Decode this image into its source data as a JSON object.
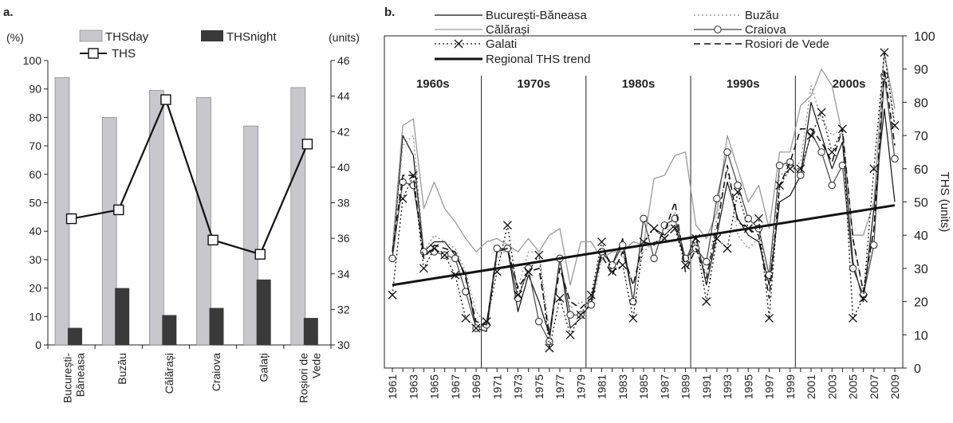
{
  "chart_data": [
    {
      "panel_label": "a.",
      "type": "bar",
      "left_axis_label": "(%)",
      "right_axis_label": "(units)",
      "categories": [
        [
          "București-",
          "Băneasa"
        ],
        [
          "Buzău"
        ],
        [
          "Călărași"
        ],
        [
          "Craiova"
        ],
        [
          "Galați"
        ],
        [
          "Roșiori de",
          "Vede"
        ]
      ],
      "ylim": [
        0,
        100
      ],
      "yticks": [
        0,
        10,
        20,
        30,
        40,
        50,
        60,
        70,
        80,
        90,
        100
      ],
      "y2lim": [
        30,
        46
      ],
      "y2ticks": [
        30,
        32,
        34,
        36,
        38,
        40,
        42,
        44,
        46
      ],
      "series": [
        {
          "name": "THSday",
          "kind": "bar",
          "axis": "left",
          "color": "#c7c7cc",
          "values": [
            94,
            80,
            89.5,
            87,
            77,
            90.5
          ]
        },
        {
          "name": "THSnight",
          "kind": "bar",
          "axis": "left",
          "color": "#3a3a3a",
          "values": [
            6,
            20,
            10.5,
            13,
            23,
            9.5
          ]
        },
        {
          "name": "THS",
          "kind": "line",
          "axis": "right",
          "color": "#111111",
          "values": [
            37.1,
            37.6,
            43.8,
            35.9,
            35.1,
            41.3
          ]
        }
      ]
    },
    {
      "panel_label": "b.",
      "type": "line",
      "ylabel": "THS (units)",
      "x": [
        1961,
        1962,
        1963,
        1964,
        1965,
        1966,
        1967,
        1968,
        1969,
        1970,
        1971,
        1972,
        1973,
        1974,
        1975,
        1976,
        1977,
        1978,
        1979,
        1980,
        1981,
        1982,
        1983,
        1984,
        1985,
        1986,
        1987,
        1988,
        1989,
        1990,
        1991,
        1992,
        1993,
        1994,
        1995,
        1996,
        1997,
        1998,
        1999,
        2000,
        2001,
        2002,
        2003,
        2004,
        2005,
        2006,
        2007,
        2008,
        2009
      ],
      "xticks": [
        1961,
        1963,
        1965,
        1967,
        1969,
        1971,
        1973,
        1975,
        1977,
        1979,
        1981,
        1983,
        1985,
        1987,
        1989,
        1991,
        1993,
        1995,
        1997,
        1999,
        2001,
        2003,
        2005,
        2007,
        2009
      ],
      "ylim": [
        0,
        100
      ],
      "yticks": [
        0,
        10,
        20,
        30,
        40,
        50,
        60,
        70,
        80,
        90,
        100
      ],
      "decades": [
        {
          "label": "1960s",
          "from": 1961,
          "to": 1970
        },
        {
          "label": "1970s",
          "from": 1970,
          "to": 1980
        },
        {
          "label": "1980s",
          "from": 1980,
          "to": 1990
        },
        {
          "label": "1990s",
          "from": 1990,
          "to": 2000
        },
        {
          "label": "2000s",
          "from": 2000,
          "to": 2009
        }
      ],
      "series": [
        {
          "name": "București-Băneasa",
          "style": "solid-thin",
          "color": "#111111",
          "values": [
            33,
            70,
            64,
            35,
            38,
            38,
            34,
            28,
            12,
            11,
            35,
            36,
            17,
            28,
            20,
            10,
            33,
            12,
            15,
            20,
            36,
            31,
            39,
            20,
            45,
            42,
            40,
            43,
            32,
            40,
            25,
            40,
            56,
            45,
            40,
            38,
            25,
            50,
            52,
            58,
            80,
            70,
            60,
            68,
            32,
            20,
            48,
            78,
            50
          ]
        },
        {
          "name": "Buzău",
          "style": "dotted",
          "color": "#8a8a8a",
          "values": [
            35,
            67,
            70,
            35,
            40,
            38,
            36,
            29,
            17,
            13,
            33,
            36,
            24,
            35,
            35,
            11,
            32,
            18,
            20,
            18,
            33,
            30,
            34,
            25,
            35,
            38,
            39,
            47,
            33,
            38,
            28,
            45,
            60,
            40,
            36,
            39,
            26,
            58,
            60,
            62,
            85,
            75,
            70,
            72,
            38,
            23,
            40,
            96,
            72
          ]
        },
        {
          "name": "Călărași",
          "style": "solid-light",
          "color": "#9a9a9a",
          "values": [
            36,
            73,
            75,
            48,
            56,
            48,
            44,
            39,
            35,
            38,
            39,
            37,
            35,
            39,
            35,
            40,
            42,
            25,
            38,
            38,
            33,
            35,
            35,
            38,
            37,
            57,
            58,
            64,
            65,
            43,
            39,
            47,
            70,
            60,
            50,
            55,
            42,
            65,
            65,
            79,
            82,
            90,
            85,
            70,
            40,
            40,
            50,
            95,
            78
          ]
        },
        {
          "name": "Craiova",
          "style": "circle-marker",
          "color": "#444444",
          "values": [
            33,
            56,
            55,
            35,
            35,
            34,
            33,
            23,
            12,
            13,
            36,
            36,
            21,
            30,
            14,
            8,
            33,
            16,
            16,
            19,
            35,
            31,
            37,
            20,
            45,
            33,
            43,
            45,
            33,
            36,
            32,
            51,
            65,
            55,
            45,
            42,
            28,
            61,
            62,
            58,
            71,
            65,
            55,
            61,
            30,
            22,
            37,
            88,
            63
          ]
        },
        {
          "name": "Galati",
          "style": "x-marker",
          "color": "#111111",
          "values": [
            22,
            51,
            58,
            30,
            36,
            34,
            28,
            15,
            12,
            14,
            29,
            43,
            22,
            29,
            34,
            6,
            21,
            10,
            16,
            22,
            38,
            29,
            31,
            15,
            38,
            42,
            39,
            42,
            31,
            39,
            20,
            39,
            36,
            53,
            42,
            45,
            15,
            55,
            60,
            60,
            70,
            77,
            65,
            72,
            15,
            21,
            60,
            95,
            73
          ]
        },
        {
          "name": "Rosiori de Vede",
          "style": "dashed",
          "color": "#111111",
          "values": [
            35,
            58,
            58,
            33,
            37,
            36,
            35,
            27,
            14,
            13,
            35,
            36,
            24,
            29,
            30,
            10,
            30,
            20,
            18,
            21,
            34,
            28,
            35,
            25,
            38,
            37,
            41,
            50,
            29,
            36,
            27,
            42,
            61,
            44,
            42,
            40,
            21,
            55,
            62,
            72,
            72,
            68,
            62,
            72,
            39,
            23,
            42,
            90,
            67
          ]
        },
        {
          "name": "Regional THS trend",
          "style": "trend",
          "color": "#111111",
          "values": [
            25,
            25.5,
            26,
            26.5,
            27,
            27.5,
            28,
            28.5,
            29,
            29.5,
            30,
            30.5,
            31,
            31.5,
            32,
            32.5,
            33,
            33.5,
            34,
            34.5,
            35,
            35.5,
            36,
            36.5,
            37,
            37.5,
            38,
            38.5,
            39,
            39.5,
            40,
            40.5,
            41,
            41.5,
            42,
            42.5,
            43,
            43.5,
            44,
            44.5,
            45,
            45.5,
            46,
            46.5,
            47,
            47.5,
            48,
            48.5,
            49
          ]
        }
      ]
    }
  ]
}
